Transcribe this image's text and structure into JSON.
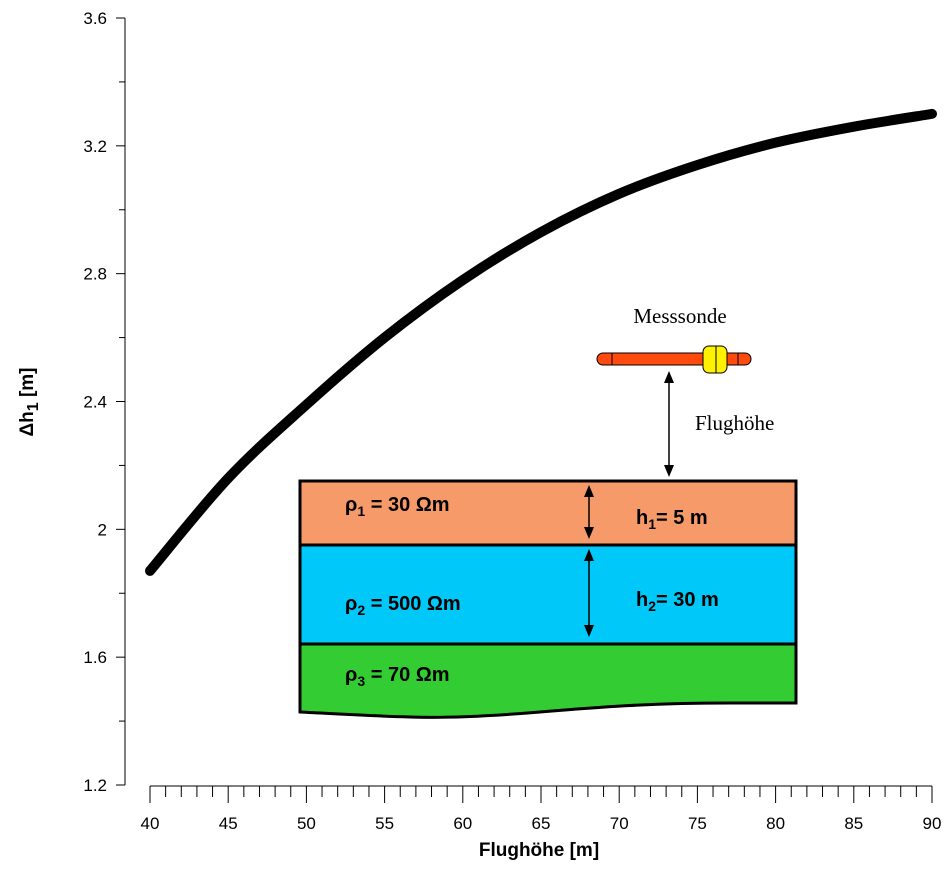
{
  "chart_data": {
    "type": "line",
    "xlabel": "Flughöhe [m]",
    "ylabel_main": "Δh",
    "ylabel_sub": "1",
    "ylabel_unit": " [m]",
    "xlim": [
      40,
      90
    ],
    "ylim": [
      1.2,
      3.6
    ],
    "x_ticks": [
      40,
      45,
      50,
      55,
      60,
      65,
      70,
      75,
      80,
      85,
      90
    ],
    "y_ticks": [
      1.2,
      1.6,
      2,
      2.4,
      2.8,
      3.2,
      3.6
    ],
    "y_tick_labels": [
      "1.2",
      "1.6",
      "2",
      "2.4",
      "2.8",
      "3.2",
      "3.6"
    ],
    "grid": false,
    "series": [
      {
        "x": [
          40,
          45,
          50,
          55,
          60,
          65,
          70,
          75,
          80,
          85,
          90
        ],
        "y": [
          1.87,
          2.16,
          2.39,
          2.6,
          2.78,
          2.93,
          3.05,
          3.14,
          3.21,
          3.26,
          3.3
        ]
      }
    ]
  },
  "inset": {
    "probe_label": "Messsonde",
    "height_label": "Flughöhe",
    "layers": [
      {
        "rho_symbol": "ρ",
        "index": "1",
        "value": " = 30 Ωm",
        "h_symbol": "h",
        "h_index": "1",
        "h_value": "= 5 m",
        "color": "#F79A6A"
      },
      {
        "rho_symbol": "ρ",
        "index": "2",
        "value": " = 500 Ωm",
        "h_symbol": "h",
        "h_index": "2",
        "h_value": "= 30 m",
        "color": "#00C8F8"
      },
      {
        "rho_symbol": "ρ",
        "index": "3",
        "value": " = 70 Ωm",
        "color": "#33CC33"
      }
    ],
    "probe_body_color": "#FF4A0E",
    "probe_ring_color": "#FFF200"
  }
}
